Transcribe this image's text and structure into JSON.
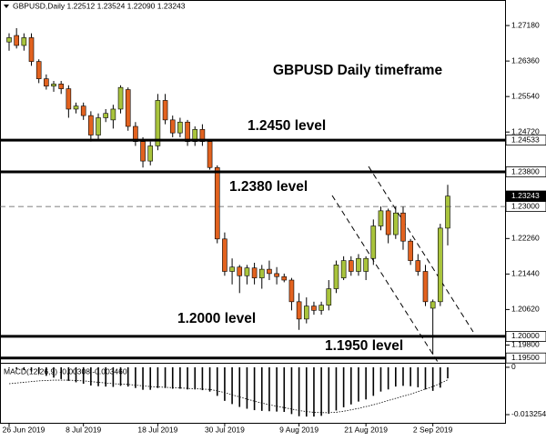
{
  "chart_data": {
    "type": "candlestick",
    "header": "GBPUSD,Daily 1.22512 1.23524 1.22090 1.23243",
    "title": "GBPUSD Daily timeframe",
    "annotations": [
      "1.2450 level",
      "1.2380 level",
      "1.2000 level",
      "1.1950 level"
    ],
    "categories": [
      "26 Jun 2019",
      null,
      null,
      null,
      null,
      null,
      null,
      null,
      null,
      null,
      "8 Jul 2019",
      null,
      null,
      null,
      null,
      null,
      null,
      null,
      null,
      null,
      "18 Jul 2019",
      null,
      null,
      null,
      null,
      null,
      null,
      null,
      null,
      "30 Jul 2019",
      null,
      null,
      null,
      null,
      null,
      null,
      null,
      null,
      null,
      "9 Aug 2019",
      null,
      null,
      null,
      null,
      null,
      null,
      null,
      null,
      "21 Aug 2019",
      null,
      null,
      null,
      null,
      null,
      null,
      null,
      null,
      "2 Sep 2019",
      null,
      null
    ],
    "open": [
      1.268,
      1.2695,
      1.2672,
      1.269,
      1.2635,
      1.2595,
      1.2578,
      1.2583,
      1.2572,
      1.2525,
      1.2532,
      1.251,
      1.2465,
      1.2505,
      1.25,
      1.2525,
      1.257,
      1.2485,
      1.245,
      1.2405,
      1.244,
      1.2545,
      1.25,
      1.247,
      1.2495,
      1.245,
      1.2478,
      1.245,
      1.239,
      1.2225,
      1.215,
      1.216,
      1.214,
      1.2158,
      1.2135,
      1.2155,
      1.2145,
      1.2138,
      1.213,
      1.208,
      1.204,
      1.207,
      1.206,
      1.2072,
      1.211,
      1.2135,
      1.2175,
      1.215,
      1.215,
      1.218,
      1.2255,
      1.229,
      1.2235,
      1.2285,
      1.222,
      1.2175,
      1.215,
      1.2065,
      1.208,
      1.225
    ],
    "high": [
      1.27,
      1.2712,
      1.27,
      1.27,
      1.264,
      1.2605,
      1.259,
      1.259,
      1.258,
      1.254,
      1.254,
      1.252,
      1.2515,
      1.2525,
      1.2535,
      1.258,
      1.2575,
      1.2495,
      1.246,
      1.245,
      1.256,
      1.256,
      1.251,
      1.2505,
      1.25,
      1.2485,
      1.249,
      1.2455,
      1.2395,
      1.224,
      1.218,
      1.2165,
      1.2165,
      1.217,
      1.2165,
      1.2175,
      1.216,
      1.2145,
      1.2135,
      1.21,
      1.209,
      1.208,
      1.208,
      1.213,
      1.2175,
      1.2185,
      1.2185,
      1.219,
      1.2185,
      1.227,
      1.23,
      1.2295,
      1.23,
      1.23,
      1.2225,
      1.219,
      1.2165,
      1.2085,
      1.226,
      1.235
    ],
    "low": [
      1.266,
      1.2665,
      1.266,
      1.2625,
      1.2585,
      1.257,
      1.2565,
      1.256,
      1.2505,
      1.2515,
      1.25,
      1.245,
      1.2455,
      1.2495,
      1.248,
      1.2515,
      1.2475,
      1.244,
      1.239,
      1.2395,
      1.243,
      1.249,
      1.246,
      1.246,
      1.244,
      1.244,
      1.244,
      1.2385,
      1.2215,
      1.214,
      1.212,
      1.21,
      1.212,
      1.212,
      1.211,
      1.213,
      1.212,
      1.2125,
      1.206,
      1.2015,
      1.203,
      1.205,
      1.205,
      1.206,
      1.21,
      1.213,
      1.214,
      1.214,
      1.213,
      1.2165,
      1.2245,
      1.2215,
      1.2225,
      1.22,
      1.2165,
      1.214,
      1.207,
      1.1958,
      1.207,
      1.221
    ],
    "close": [
      1.269,
      1.2672,
      1.269,
      1.2635,
      1.2595,
      1.2578,
      1.2583,
      1.2572,
      1.2525,
      1.2532,
      1.251,
      1.2465,
      1.2505,
      1.2515,
      1.2525,
      1.2575,
      1.2485,
      1.245,
      1.2405,
      1.244,
      1.2545,
      1.25,
      1.247,
      1.2495,
      1.245,
      1.2478,
      1.245,
      1.239,
      1.2225,
      1.215,
      1.216,
      1.214,
      1.2158,
      1.2135,
      1.2155,
      1.2145,
      1.2138,
      1.213,
      1.208,
      1.204,
      1.207,
      1.206,
      1.2072,
      1.211,
      1.2165,
      1.2175,
      1.215,
      1.218,
      1.218,
      1.2255,
      1.229,
      1.2235,
      1.2285,
      1.222,
      1.2175,
      1.215,
      1.208,
      1.208,
      1.225,
      1.2324
    ],
    "up_color": "#a9c43c",
    "down_color": "#e2621f",
    "ylim": [
      1.1941,
      1.2777
    ],
    "yticks": [
      {
        "value": 1.2718,
        "label": "1.27180"
      },
      {
        "value": 1.2636,
        "label": "1.26360"
      },
      {
        "value": 1.2554,
        "label": "1.25540"
      },
      {
        "value": 1.2472,
        "label": "1.24720"
      },
      {
        "value": 1.2226,
        "label": "1.22260"
      },
      {
        "value": 1.2144,
        "label": "1.21440"
      },
      {
        "value": 1.2062,
        "label": "1.20620"
      },
      {
        "value": 1.198,
        "label": "1.19800"
      }
    ],
    "levels": [
      {
        "value": 1.24533,
        "label": "1.24533",
        "style": "solid"
      },
      {
        "value": 1.238,
        "label": "1.23800",
        "style": "solid"
      },
      {
        "value": 1.23243,
        "label": "1.23243",
        "style": "current"
      },
      {
        "value": 1.23,
        "label": "1.23000",
        "style": "dashed"
      },
      {
        "value": 1.2,
        "label": "1.20000",
        "style": "solid"
      },
      {
        "value": 1.195,
        "label": "1.19500",
        "style": "solid"
      }
    ],
    "indicator": {
      "name": "MACD(12,26,9) -0.00308 -0.003460",
      "ylim": [
        -0.0158,
        0.001
      ],
      "yticks": [
        0,
        -0.013254
      ],
      "histogram": [
        -0.0002,
        -0.0005,
        -0.0008,
        -0.0012,
        -0.0018,
        -0.0024,
        -0.0029,
        -0.0033,
        -0.0038,
        -0.0042,
        -0.0046,
        -0.0051,
        -0.0053,
        -0.0054,
        -0.0055,
        -0.0052,
        -0.0054,
        -0.0058,
        -0.0063,
        -0.0063,
        -0.0058,
        -0.0058,
        -0.006,
        -0.006,
        -0.0062,
        -0.0062,
        -0.0064,
        -0.0068,
        -0.008,
        -0.0094,
        -0.0103,
        -0.0111,
        -0.0116,
        -0.012,
        -0.0122,
        -0.0123,
        -0.0124,
        -0.0125,
        -0.0131,
        -0.0137,
        -0.0138,
        -0.0138,
        -0.0136,
        -0.013,
        -0.0121,
        -0.0112,
        -0.0104,
        -0.0096,
        -0.009,
        -0.008,
        -0.0068,
        -0.0062,
        -0.0054,
        -0.0052,
        -0.0053,
        -0.0056,
        -0.0062,
        -0.0066,
        -0.0057,
        -0.0031
      ],
      "signal": [
        -0.0046,
        -0.0044,
        -0.0042,
        -0.004,
        -0.0038,
        -0.0037,
        -0.0036,
        -0.0036,
        -0.0036,
        -0.0037,
        -0.0038,
        -0.004,
        -0.0042,
        -0.0044,
        -0.0046,
        -0.0047,
        -0.0048,
        -0.005,
        -0.0052,
        -0.0054,
        -0.0055,
        -0.0056,
        -0.0057,
        -0.0058,
        -0.0059,
        -0.006,
        -0.0061,
        -0.0062,
        -0.0066,
        -0.0071,
        -0.0077,
        -0.0083,
        -0.0089,
        -0.0095,
        -0.01,
        -0.0105,
        -0.0109,
        -0.0113,
        -0.0117,
        -0.0121,
        -0.0124,
        -0.0126,
        -0.0127,
        -0.0127,
        -0.0126,
        -0.0123,
        -0.0119,
        -0.0115,
        -0.011,
        -0.0105,
        -0.0099,
        -0.0093,
        -0.0087,
        -0.0081,
        -0.0075,
        -0.0068,
        -0.0061,
        -0.0054,
        -0.0045,
        -0.0035
      ]
    }
  }
}
